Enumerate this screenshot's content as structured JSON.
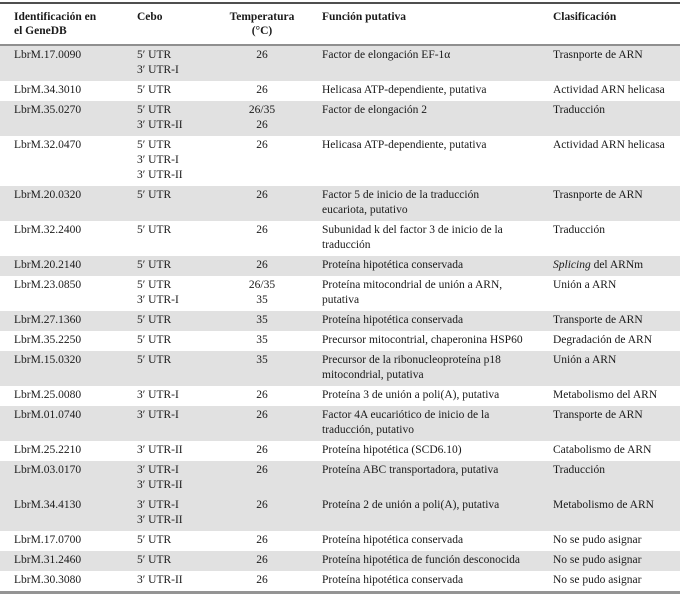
{
  "colors": {
    "row_shade": "#e1e1e1",
    "top_rule": "#4f4f4f",
    "header_rule": "#8f8f8f",
    "bottom_rule": "#949494",
    "text": "#1a1a1a"
  },
  "table": {
    "headers": [
      "Identificación en\nel GeneDB",
      "Cebo",
      "Temperatura\n(°C)",
      "Función putativa",
      "Clasificación"
    ],
    "rows": [
      {
        "id": "LbrM.17.0090",
        "cebo": "5′ UTR\n3′ UTR-I",
        "temp": "26",
        "funcion": "Factor de elongación EF-1α",
        "clasificacion": "Trasnporte de ARN",
        "shaded": true
      },
      {
        "id": "LbrM.34.3010",
        "cebo": "5′ UTR",
        "temp": "26",
        "funcion": "Helicasa ATP-dependiente, putativa",
        "clasificacion": "Actividad ARN helicasa",
        "shaded": false
      },
      {
        "id": "LbrM.35.0270",
        "cebo": "5′ UTR\n3′ UTR-II",
        "temp": "26/35\n26",
        "funcion": "Factor de elongación 2",
        "clasificacion": "Traducción",
        "shaded": true
      },
      {
        "id": "LbrM.32.0470",
        "cebo": "5′ UTR\n3′ UTR-I\n3′ UTR-II",
        "temp": "26",
        "funcion": "Helicasa ATP-dependiente, putativa",
        "clasificacion": "Actividad ARN helicasa",
        "shaded": false
      },
      {
        "id": "LbrM.20.0320",
        "cebo": "5′ UTR",
        "temp": "26",
        "funcion": "Factor 5 de inicio de la traducción\neucariota, putativo",
        "clasificacion": "Trasnporte de ARN",
        "shaded": true
      },
      {
        "id": "LbrM.32.2400",
        "cebo": "5′ UTR",
        "temp": "26",
        "funcion": "Subunidad k del factor 3 de inicio de la\ntraducción",
        "clasificacion": "Traducción",
        "shaded": false
      },
      {
        "id": "LbrM.20.2140",
        "cebo": "5′ UTR",
        "temp": "26",
        "funcion": "Proteína hipotética conservada",
        "clasificacion_italic": "Splicing",
        "clasificacion": " del ARNm",
        "shaded": true
      },
      {
        "id": "LbrM.23.0850",
        "cebo": "5′ UTR\n3′ UTR-I",
        "temp": "26/35\n35",
        "funcion": "Proteína mitocondrial de unión a ARN,\nputativa",
        "clasificacion": "Unión a ARN",
        "shaded": false
      },
      {
        "id": "LbrM.27.1360",
        "cebo": "5′ UTR",
        "temp": "35",
        "funcion": "Proteína hipotética conservada",
        "clasificacion": "Transporte de ARN",
        "shaded": true
      },
      {
        "id": "LbrM.35.2250",
        "cebo": "5′ UTR",
        "temp": "35",
        "funcion": "Precursor mitocontrial, chaperonina HSP60",
        "clasificacion": "Degradación de ARN",
        "shaded": false
      },
      {
        "id": "LbrM.15.0320",
        "cebo": "5′ UTR",
        "temp": "35",
        "funcion": "Precursor de la ribonucleoproteína p18\nmitocondrial, putativa",
        "clasificacion": "Unión a ARN",
        "shaded": true
      },
      {
        "id": "LbrM.25.0080",
        "cebo": "3′ UTR-I",
        "temp": "26",
        "funcion": "Proteína 3 de unión a poli(A), putativa",
        "clasificacion": "Metabolismo del ARN",
        "shaded": false
      },
      {
        "id": "LbrM.01.0740",
        "cebo": "3′ UTR-I",
        "temp": "26",
        "funcion": "Factor 4A eucariótico de inicio de la\ntraducción, putativo",
        "clasificacion": "Transporte de ARN",
        "shaded": true
      },
      {
        "id": "LbrM.25.2210",
        "cebo": "3′ UTR-II",
        "temp": "26",
        "funcion": "Proteína hipotética (SCD6.10)",
        "clasificacion": "Catabolismo de ARN",
        "shaded": false
      },
      {
        "id": "LbrM.03.0170",
        "cebo": "3′ UTR-I\n3′ UTR-II",
        "temp": "26",
        "funcion": "Proteína ABC transportadora, putativa",
        "clasificacion": "Traducción",
        "shaded": true
      },
      {
        "id": "LbrM.34.4130",
        "cebo": "3′ UTR-I\n3′ UTR-II",
        "temp": "26",
        "funcion": "Proteína 2 de unión a poli(A), putativa",
        "clasificacion": "Metabolismo de ARN",
        "shaded": true
      },
      {
        "id": "LbrM.17.0700",
        "cebo": "5′ UTR",
        "temp": "26",
        "funcion": "Proteína hipotética conservada",
        "clasificacion": "No se pudo asignar",
        "shaded": false
      },
      {
        "id": "LbrM.31.2460",
        "cebo": "5′ UTR",
        "temp": "26",
        "funcion": "Proteína hipotética de función desconocida",
        "clasificacion": "No se pudo asignar",
        "shaded": true
      },
      {
        "id": "LbrM.30.3080",
        "cebo": "3′ UTR-II",
        "temp": "26",
        "funcion": "Proteína hipotética conservada",
        "clasificacion": "No se pudo asignar",
        "shaded": false
      }
    ]
  }
}
